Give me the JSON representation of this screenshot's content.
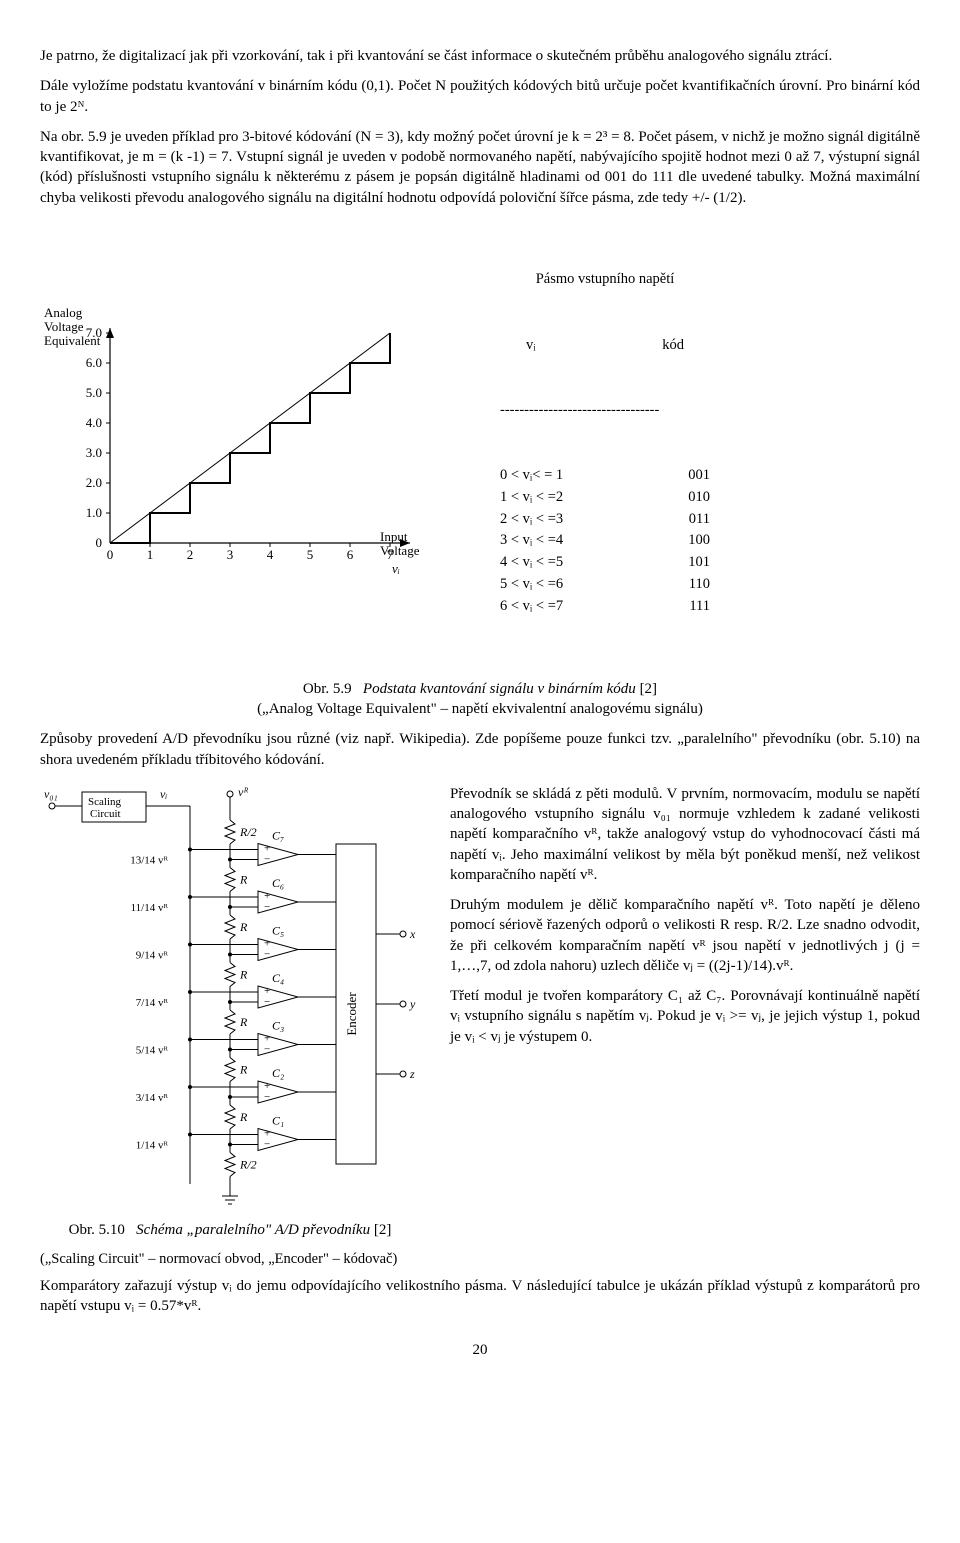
{
  "para1": "Je patrno, že digitalizací jak při vzorkování, tak i při kvantování se část informace o skutečném průběhu analogového signálu ztrácí.",
  "para2": "Dále vyložíme podstatu kvantování v binárním kódu (0,1). Počet N použitých kódových bitů určuje počet kvantifikačních úrovní. Pro binární kód to je 2ᴺ.",
  "para3": "Na obr. 5.9 je uveden příklad pro 3-bitové kódování (N = 3), kdy možný počet úrovní je k = 2³ = 8. Počet pásem, v nichž je možno signál digitálně kvantifikovat, je m = (k -1) = 7. Vstupní signál je uveden v podobě normovaného napětí, nabývajícího spojitě hodnot mezi 0 až 7, výstupní signál (kód) příslušnosti vstupního signálu k některému z pásem je popsán digitálně hladinami od 001 do 111 dle uvedené tabulky. Možná maximální chyba velikosti převodu analogového signálu na digitální hodnotu odpovídá poloviční šířce pásma, zde tedy +/- (1/2).",
  "fig59": {
    "ylabel1": "Analog",
    "ylabel2": "Voltage",
    "ylabel3": "Equivalent",
    "xlabel1": "Input",
    "xlabel2": "Voltage",
    "xvar": "vᵢ",
    "yticks": [
      "7.0",
      "6.0",
      "5.0",
      "4.0",
      "3.0",
      "2.0",
      "1.0",
      "0"
    ],
    "xticks": [
      "0",
      "1",
      "2",
      "3",
      "4",
      "5",
      "6",
      "7"
    ],
    "steps_x": [
      0,
      1,
      2,
      3,
      4,
      5,
      6,
      7
    ],
    "stroke": "#000000",
    "bg": "#ffffff"
  },
  "voltage_table": {
    "head1": "Pásmo vstupního napětí",
    "head2_left": "vᵢ",
    "head2_right": "kód",
    "divider": "---------------------------------",
    "rows": [
      {
        "range": "0 < vᵢ< = 1",
        "code": "001"
      },
      {
        "range": "1 < vᵢ < =2",
        "code": "010"
      },
      {
        "range": "2 < vᵢ < =3",
        "code": "011"
      },
      {
        "range": "3 < vᵢ < =4",
        "code": "100"
      },
      {
        "range": "4 < vᵢ < =5",
        "code": "101"
      },
      {
        "range": "5 < vᵢ < =6",
        "code": "110"
      },
      {
        "range": "6 < vᵢ < =7",
        "code": "111"
      }
    ]
  },
  "caption59_a": "Obr. 5.9",
  "caption59_b": "Podstata kvantování signálu v binárním kódu",
  "caption59_c": " [2]",
  "caption59_sub": "(„Analog Voltage Equivalent\" – napětí ekvivalentní analogovému signálu)",
  "para4": "Způsoby provedení A/D převodníku jsou různé (viz např. Wikipedia). Zde popíšeme pouze funkci tzv. „paralelního\" převodníku (obr. 5.10) na shora uvedeném příkladu tříbitového kódování.",
  "fig510": {
    "scaling_label": "Scaling Circuit",
    "encoder_label": "Encoder",
    "v01": "v₀₁",
    "vi": "vᵢ",
    "vR": "vᴿ",
    "R": "R",
    "R2": "R/2",
    "outputs": [
      "x",
      "y",
      "z"
    ],
    "comparators": [
      "C₇",
      "C₆",
      "C₅",
      "C₄",
      "C₃",
      "C₂",
      "C₁"
    ],
    "fractions": [
      "13/14 vᴿ",
      "11/14 vᴿ",
      "9/14 vᴿ",
      "7/14 vᴿ",
      "5/14 vᴿ",
      "3/14 vᴿ",
      "1/14 vᴿ"
    ],
    "stroke": "#000000"
  },
  "caption510_a": "Obr. 5.10",
  "caption510_b": "Schéma „paralelního\" A/D převodníku",
  "caption510_c": " [2]",
  "caption510_sub": "(„Scaling Circuit\" – normovací obvod, „Encoder\" – kódovač)",
  "right1": "Převodník se skládá z pěti modulů. V prvním, normovacím, modulu se napětí analogového vstupního signálu v₀₁ normuje vzhledem k zadané velikosti napětí komparačního vᴿ, takže analogový vstup do vyhodnocovací části má napětí vᵢ. Jeho maximální velikost by měla být poněkud menší, než velikost komparačního napětí vᴿ.",
  "right2": "Druhým modulem je dělič komparačního napětí vᴿ. Toto napětí je děleno pomocí sériově řazených odporů o velikosti R resp. R/2. Lze snadno odvodit, že při celkovém komparačním napětí vᴿ jsou napětí v jednotlivých j (j = 1,…,7, od zdola nahoru) uzlech děliče vⱼ = ((2j-1)/14).vᴿ.",
  "right3": "Třetí modul je tvořen komparátory C₁ až C₇. Porovnávají kontinuálně napětí vᵢ vstupního signálu s napětím vⱼ. Pokud je vᵢ >= vⱼ, je jejich výstup 1, pokud je vᵢ < vⱼ je výstupem 0.",
  "para5": "Komparátory zařazují výstup vᵢ do jemu odpovídajícího velikostního pásma. V následující tabulce je ukázán příklad výstupů z komparátorů pro napětí vstupu vᵢ = 0.57*vᴿ.",
  "pagenum": "20"
}
